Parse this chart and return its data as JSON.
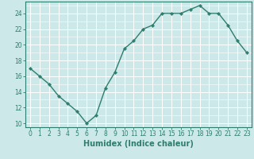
{
  "x": [
    0,
    1,
    2,
    3,
    4,
    5,
    6,
    7,
    8,
    9,
    10,
    11,
    12,
    13,
    14,
    15,
    16,
    17,
    18,
    19,
    20,
    21,
    22,
    23
  ],
  "y": [
    17,
    16,
    15,
    13.5,
    12.5,
    11.5,
    10,
    11,
    14.5,
    16.5,
    19.5,
    20.5,
    22,
    22.5,
    24,
    24,
    24,
    24.5,
    25,
    24,
    24,
    22.5,
    20.5,
    19
  ],
  "line_color": "#2e7d6e",
  "marker": "D",
  "marker_size": 2.2,
  "line_width": 1.0,
  "bg_color": "#cce8e8",
  "grid_color": "#ffffff",
  "xlabel": "Humidex (Indice chaleur)",
  "xlabel_fontsize": 7,
  "xlim": [
    -0.5,
    23.5
  ],
  "ylim": [
    9.5,
    25.5
  ],
  "yticks": [
    10,
    12,
    14,
    16,
    18,
    20,
    22,
    24
  ],
  "xticks": [
    0,
    1,
    2,
    3,
    4,
    5,
    6,
    7,
    8,
    9,
    10,
    11,
    12,
    13,
    14,
    15,
    16,
    17,
    18,
    19,
    20,
    21,
    22,
    23
  ],
  "tick_fontsize": 5.5
}
